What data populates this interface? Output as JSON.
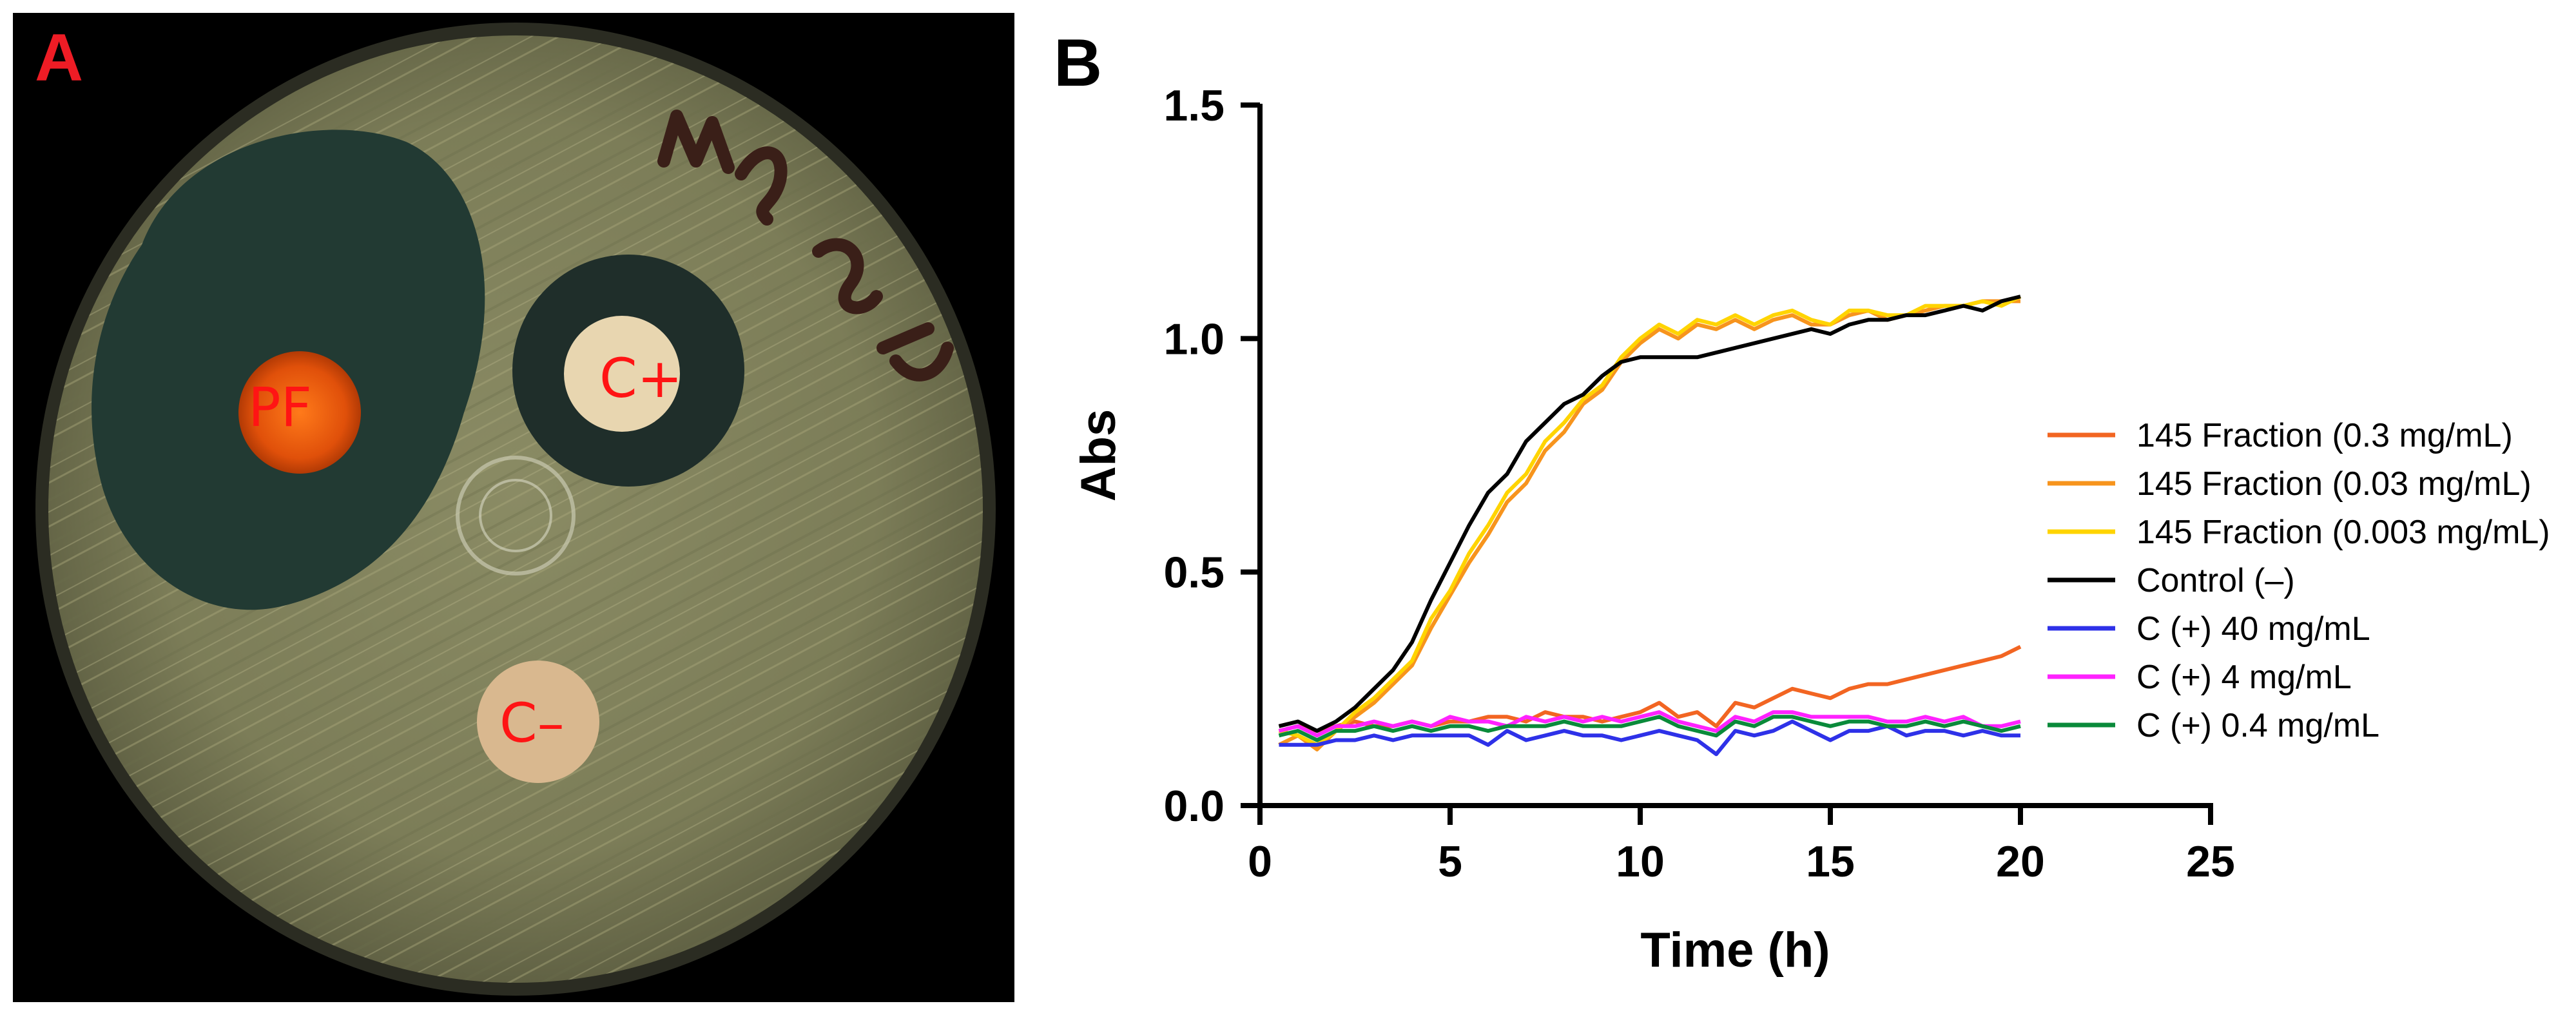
{
  "panel_a": {
    "letter": "A",
    "letter_color": "#ee1c25",
    "label_color": "#ff1414",
    "plate_labels": {
      "pf": "PF",
      "c_plus": "C+",
      "c_minus": "C–"
    },
    "handwriting": "MAS 5E"
  },
  "panel_b": {
    "letter": "B"
  },
  "chart_data": {
    "type": "line",
    "title": "",
    "xlabel": "Time (h)",
    "ylabel": "Abs",
    "xlim": [
      0,
      25
    ],
    "ylim": [
      0,
      1.5
    ],
    "xticks": [
      "0",
      "5",
      "10",
      "15",
      "20",
      "25"
    ],
    "yticks": [
      "0.0",
      "0.5",
      "1.0",
      "1.5"
    ],
    "grid": false,
    "legend_position": "right",
    "x": [
      0.5,
      1,
      1.5,
      2,
      2.5,
      3,
      3.5,
      4,
      4.5,
      5,
      5.5,
      6,
      6.5,
      7,
      7.5,
      8,
      8.5,
      9,
      9.5,
      10,
      10.5,
      11,
      11.5,
      12,
      12.5,
      13,
      13.5,
      14,
      14.5,
      15,
      15.5,
      16,
      16.5,
      17,
      17.5,
      18,
      18.5,
      19,
      19.5,
      20
    ],
    "series": [
      {
        "name": "145 Fraction (0.3 mg/mL)",
        "color": "#f26522",
        "values": [
          0.16,
          0.17,
          0.16,
          0.17,
          0.18,
          0.17,
          0.17,
          0.18,
          0.17,
          0.18,
          0.18,
          0.19,
          0.19,
          0.18,
          0.2,
          0.19,
          0.19,
          0.18,
          0.19,
          0.2,
          0.22,
          0.19,
          0.2,
          0.17,
          0.22,
          0.21,
          0.23,
          0.25,
          0.24,
          0.23,
          0.25,
          0.26,
          0.26,
          0.27,
          0.28,
          0.29,
          0.3,
          0.31,
          0.32,
          0.34
        ]
      },
      {
        "name": "145 Fraction (0.03 mg/mL)",
        "color": "#f7941d",
        "values": [
          0.13,
          0.15,
          0.12,
          0.16,
          0.19,
          0.22,
          0.26,
          0.3,
          0.38,
          0.45,
          0.52,
          0.58,
          0.65,
          0.69,
          0.76,
          0.8,
          0.86,
          0.89,
          0.95,
          0.99,
          1.02,
          1.0,
          1.03,
          1.02,
          1.04,
          1.02,
          1.04,
          1.05,
          1.03,
          1.03,
          1.05,
          1.06,
          1.04,
          1.05,
          1.06,
          1.07,
          1.07,
          1.08,
          1.08,
          1.08
        ]
      },
      {
        "name": "145 Fraction (0.003 mg/mL)",
        "color": "#ffd400",
        "values": [
          0.16,
          0.15,
          0.13,
          0.16,
          0.2,
          0.23,
          0.27,
          0.31,
          0.4,
          0.46,
          0.54,
          0.6,
          0.67,
          0.71,
          0.78,
          0.82,
          0.87,
          0.9,
          0.96,
          1.0,
          1.03,
          1.01,
          1.04,
          1.03,
          1.05,
          1.03,
          1.05,
          1.06,
          1.04,
          1.03,
          1.06,
          1.06,
          1.05,
          1.05,
          1.07,
          1.07,
          1.07,
          1.08,
          1.07,
          1.09
        ]
      },
      {
        "name": "Control (–)",
        "color": "#000000",
        "values": [
          0.17,
          0.18,
          0.16,
          0.18,
          0.21,
          0.25,
          0.29,
          0.35,
          0.44,
          0.52,
          0.6,
          0.67,
          0.71,
          0.78,
          0.82,
          0.86,
          0.88,
          0.92,
          0.95,
          0.96,
          0.96,
          0.96,
          0.96,
          0.97,
          0.98,
          0.99,
          1.0,
          1.01,
          1.02,
          1.01,
          1.03,
          1.04,
          1.04,
          1.05,
          1.05,
          1.06,
          1.07,
          1.06,
          1.08,
          1.09
        ]
      },
      {
        "name": "C (+) 40 mg/mL",
        "color": "#2e31e8",
        "values": [
          0.13,
          0.13,
          0.13,
          0.14,
          0.14,
          0.15,
          0.14,
          0.15,
          0.15,
          0.15,
          0.15,
          0.13,
          0.16,
          0.14,
          0.15,
          0.16,
          0.15,
          0.15,
          0.14,
          0.15,
          0.16,
          0.15,
          0.14,
          0.11,
          0.16,
          0.15,
          0.16,
          0.18,
          0.16,
          0.14,
          0.16,
          0.16,
          0.17,
          0.15,
          0.16,
          0.16,
          0.15,
          0.16,
          0.15,
          0.15
        ]
      },
      {
        "name": "C (+) 4 mg/mL",
        "color": "#ff22ff",
        "values": [
          0.16,
          0.17,
          0.15,
          0.17,
          0.17,
          0.18,
          0.17,
          0.18,
          0.17,
          0.19,
          0.18,
          0.18,
          0.17,
          0.19,
          0.18,
          0.19,
          0.18,
          0.19,
          0.18,
          0.19,
          0.2,
          0.18,
          0.17,
          0.16,
          0.19,
          0.18,
          0.2,
          0.2,
          0.19,
          0.19,
          0.19,
          0.19,
          0.18,
          0.18,
          0.19,
          0.18,
          0.19,
          0.17,
          0.17,
          0.18
        ]
      },
      {
        "name": "C (+) 0.4 mg/mL",
        "color": "#0a8a3a",
        "values": [
          0.15,
          0.16,
          0.14,
          0.16,
          0.16,
          0.17,
          0.16,
          0.17,
          0.16,
          0.17,
          0.17,
          0.16,
          0.17,
          0.17,
          0.17,
          0.18,
          0.17,
          0.17,
          0.17,
          0.18,
          0.19,
          0.17,
          0.16,
          0.15,
          0.18,
          0.17,
          0.19,
          0.19,
          0.18,
          0.17,
          0.18,
          0.18,
          0.17,
          0.17,
          0.18,
          0.17,
          0.18,
          0.17,
          0.16,
          0.17
        ]
      }
    ]
  }
}
